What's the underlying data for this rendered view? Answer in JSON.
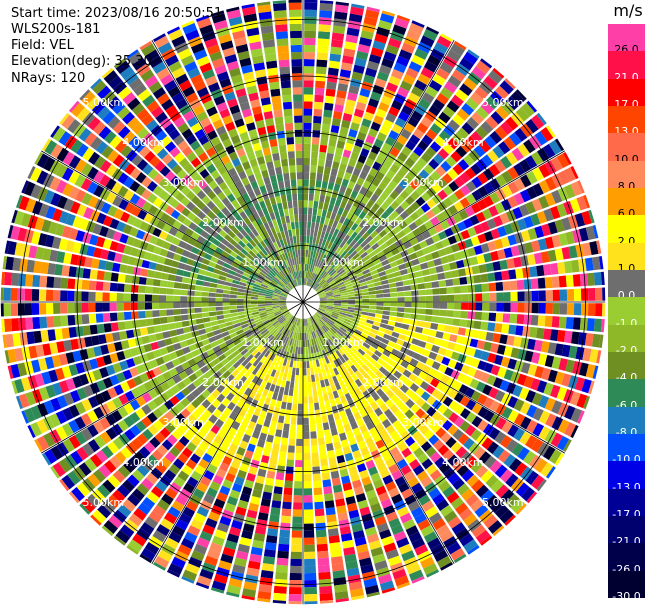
{
  "header": {
    "start_time": "Start time: 2023/08/16 20:50:51",
    "instrument": "WLS200s-181",
    "field": "Field: VEL",
    "elevation": "Elevation(deg): 35.30",
    "nrays": "NRays: 120"
  },
  "chart_data": {
    "type": "heatmap",
    "projection": "polar-ppi",
    "nrays": 120,
    "field": "VEL",
    "units": "m/s",
    "range_rings_km": [
      1.0,
      2.0,
      3.0,
      4.0,
      5.0
    ],
    "ring_labels": [
      "1.00km",
      "2.00km",
      "3.00km",
      "4.00km",
      "5.00km"
    ],
    "max_range_km": 5.35,
    "radial_lines_deg": [
      0,
      30,
      60,
      90,
      120,
      150,
      180,
      210,
      240,
      270,
      300,
      330
    ],
    "colorbar": {
      "unit": "m/s",
      "levels": [
        {
          "label": "26.0",
          "color": "#ff3fa8"
        },
        {
          "label": "21.0",
          "color": "#ff1049"
        },
        {
          "label": "17.0",
          "color": "#ff0000"
        },
        {
          "label": "13.0",
          "color": "#ff4500"
        },
        {
          "label": "10.0",
          "color": "#ff6a4a"
        },
        {
          "label": "8.0",
          "color": "#ff8a5c"
        },
        {
          "label": "6.0",
          "color": "#ff9e00"
        },
        {
          "label": "2.0",
          "color": "#ffff00"
        },
        {
          "label": "1.0",
          "color": "#ffe21c"
        },
        {
          "label": "0.0",
          "color": "#6e6e6e"
        },
        {
          "label": "-1.0",
          "color": "#9acd32"
        },
        {
          "label": "-2.0",
          "color": "#8fb829"
        },
        {
          "label": "-4.0",
          "color": "#6f8f22"
        },
        {
          "label": "-6.0",
          "color": "#2e8b57"
        },
        {
          "label": "-8.0",
          "color": "#1e7dbf"
        },
        {
          "label": "-10.0",
          "color": "#0050ff"
        },
        {
          "label": "-13.0",
          "color": "#0000e6"
        },
        {
          "label": "-17.0",
          "color": "#000096"
        },
        {
          "label": "-21.0",
          "color": "#00006e"
        },
        {
          "label": "-26.0",
          "color": "#00004a"
        },
        {
          "label": "-30.0",
          "color": "#000030"
        }
      ]
    }
  }
}
